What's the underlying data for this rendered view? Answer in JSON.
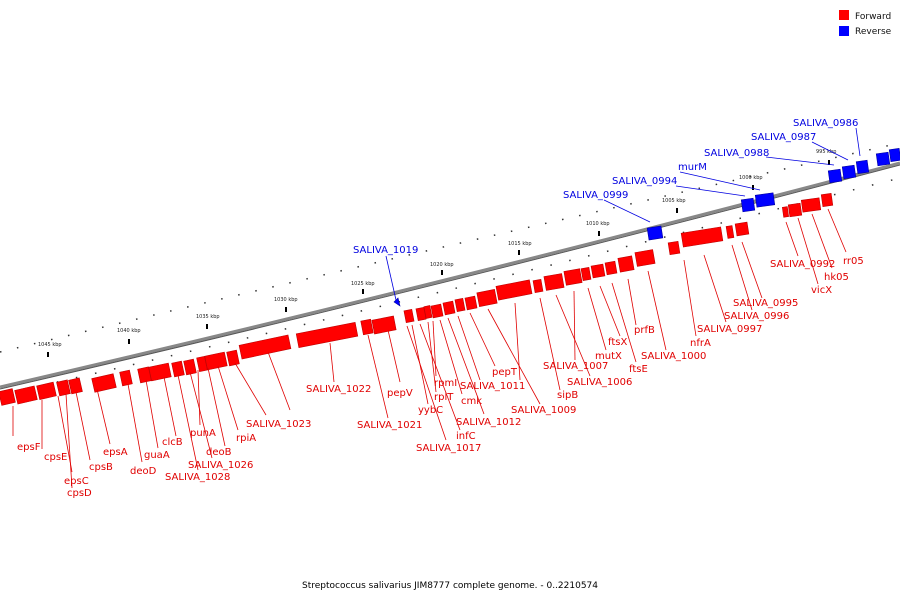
{
  "legend": {
    "forward": {
      "label": "Forward",
      "color": "#ff0000"
    },
    "reverse": {
      "label": "Reverse",
      "color": "#0000ff"
    }
  },
  "caption": "Streptococcus salivarius JIM8777 complete genome. - 0..2210574",
  "kbp_ticks": [
    "1045 kbp",
    "1040 kbp",
    "1035 kbp",
    "1030 kbp",
    "1025 kbp",
    "1020 kbp",
    "1015 kbp",
    "1010 kbp",
    "1005 kbp",
    "1000 kbp",
    "995 kbp"
  ],
  "features_forward": [
    "epsF",
    "cpsE",
    "epsC",
    "cpsD",
    "cpsB",
    "epsA",
    "deoD",
    "guaA",
    "clcB",
    "SALIVA_1028",
    "SALIVA_1026",
    "punA",
    "deoB",
    "rpiA",
    "SALIVA_1023",
    "SALIVA_1022",
    "SALIVA_1021",
    "pepV",
    "SALIVA_1017",
    "yybC",
    "infC",
    "rplT",
    "rpmI",
    "cmk",
    "SALIVA_1012",
    "SALIVA_1011",
    "pepT",
    "SALIVA_1009",
    "sipB",
    "SALIVA_1006",
    "SALIVA_1007",
    "mutX",
    "ftsX",
    "ftsE",
    "prfB",
    "SALIVA_1000",
    "nfrA",
    "SALIVA_0997",
    "SALIVA_0996",
    "SALIVA_0995",
    "SALIVA_0992",
    "vicX",
    "hk05",
    "rr05"
  ],
  "features_reverse": [
    "SALIVA_1019",
    "SALIVA_0999",
    "SALIVA_0994",
    "murM",
    "SALIVA_0988",
    "SALIVA_0987",
    "SALIVA_0986"
  ]
}
